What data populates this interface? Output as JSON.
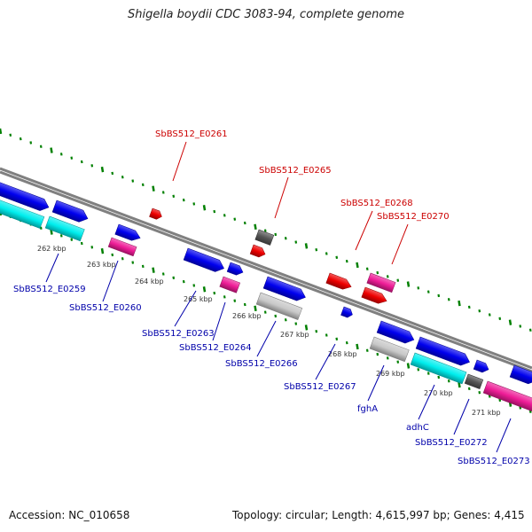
{
  "title": "Shigella boydii CDC 3083-94, complete genome",
  "footer": {
    "accession": "Accession: NC_010658",
    "summary": "Topology: circular; Length: 4,615,997 bp; Genes: 4,415"
  },
  "colors": {
    "backbone": "#808080",
    "scale_dots": "#008000",
    "label_top": "#cc0000",
    "label_bottom": "#0000aa",
    "gene_blue": "#0000ee",
    "gene_cyan": "#00eeee",
    "gene_magenta": "#ee1c96",
    "gene_red": "#ee0000",
    "gene_gray": "#555555",
    "gene_lightgray": "#c8c8c8"
  },
  "ticks": [
    {
      "label": "262 kbp"
    },
    {
      "label": "263 kbp"
    },
    {
      "label": "264 kbp"
    },
    {
      "label": "265 kbp"
    },
    {
      "label": "266 kbp"
    },
    {
      "label": "267 kbp"
    },
    {
      "label": "268 kbp"
    },
    {
      "label": "269 kbp"
    },
    {
      "label": "270 kbp"
    },
    {
      "label": "271 kbp"
    }
  ],
  "genes_top": [
    {
      "label": "SbBS512_E0261"
    },
    {
      "label": "SbBS512_E0265"
    },
    {
      "label": "SbBS512_E0268"
    },
    {
      "label": "SbBS512_E0270"
    }
  ],
  "genes_bottom": [
    {
      "label": "SbBS512_E0259"
    },
    {
      "label": "SbBS512_E0260"
    },
    {
      "label": "SbBS512_E0263"
    },
    {
      "label": "SbBS512_E0264"
    },
    {
      "label": "SbBS512_E0266"
    },
    {
      "label": "SbBS512_E0267"
    },
    {
      "label": "fghA"
    },
    {
      "label": "adhC"
    },
    {
      "label": "SbBS512_E0272"
    },
    {
      "label": "SbBS512_E0273"
    }
  ]
}
